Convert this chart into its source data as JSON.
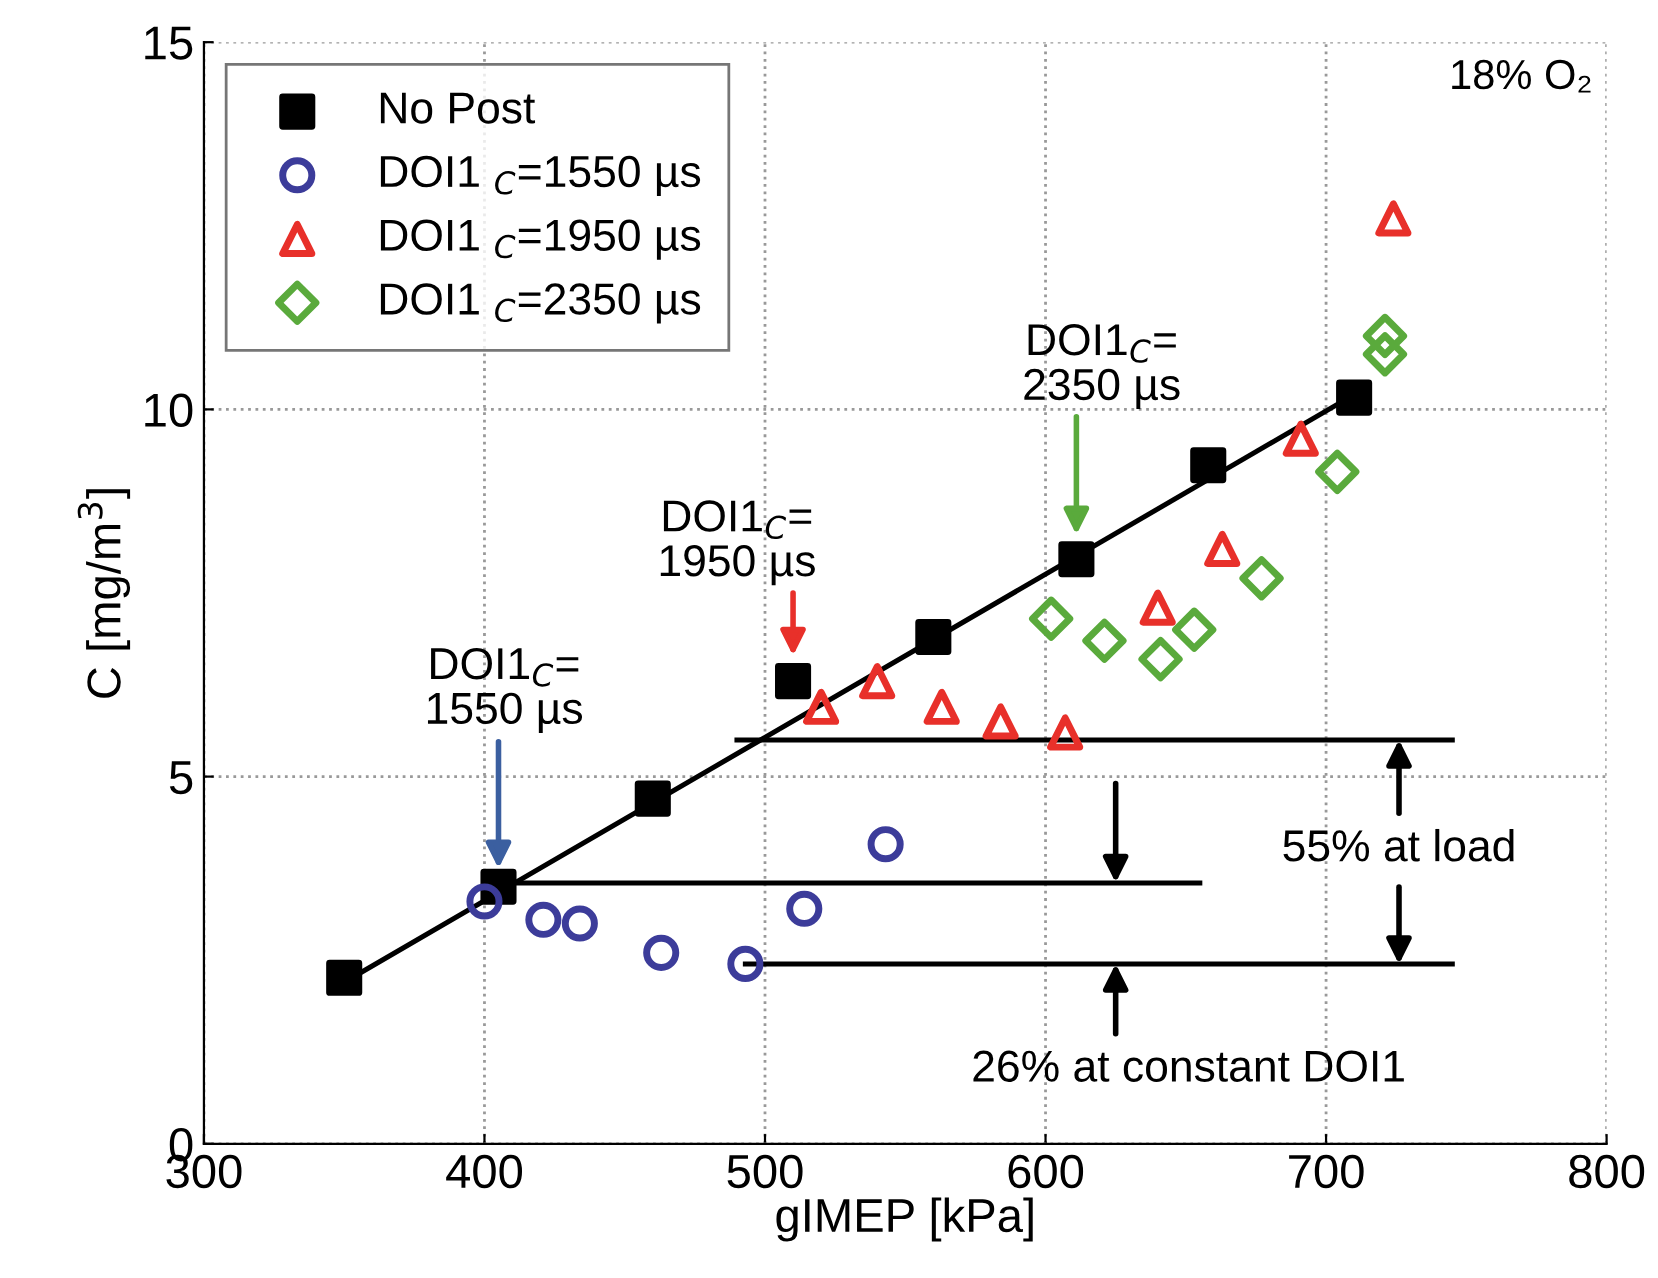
{
  "chart_data": {
    "type": "scatter",
    "xlabel": "gIMEP [kPa]",
    "ylabel": "C [mg/m$^{3}$]",
    "xlim": [
      300,
      800
    ],
    "xticks": [
      300,
      400,
      500,
      600,
      700,
      800
    ],
    "ylim": [
      0,
      15
    ],
    "yticks": [
      0,
      5,
      10,
      15
    ],
    "grid": true,
    "legend": "top left",
    "series": [
      {
        "name": "No Post",
        "color": "#000000",
        "marker": "square",
        "x": [
          350,
          405,
          460,
          510,
          560,
          611,
          658,
          710
        ],
        "values": [
          2.26,
          3.5,
          4.7,
          6.3,
          6.9,
          7.96,
          9.24,
          10.16
        ]
      },
      {
        "name": "DOI1 $_{C}$=1550 µs",
        "color": "#3c3c9a",
        "marker": "circle",
        "x": [
          400,
          421,
          434,
          463,
          493,
          514,
          543
        ],
        "values": [
          3.3,
          3.05,
          3.0,
          2.6,
          2.45,
          3.2,
          4.08
        ]
      },
      {
        "name": "DOI1 $_{C}$=1950 µs",
        "color": "#e8302a",
        "marker": "triangle",
        "x": [
          520,
          540,
          563,
          584,
          607,
          640,
          663,
          691,
          724
        ],
        "values": [
          5.95,
          6.3,
          5.95,
          5.75,
          5.6,
          7.3,
          8.1,
          9.6,
          12.6
        ]
      },
      {
        "name": "DOI1 $_{C}$=2350 µs",
        "color": "#5aaa3c",
        "marker": "diamond",
        "x": [
          602,
          621,
          641,
          653,
          677,
          704,
          721,
          721
        ],
        "values": [
          7.15,
          6.85,
          6.6,
          7.0,
          7.7,
          9.15,
          11.0,
          10.75
        ]
      },
      {
        "type": "line",
        "color": "#000000",
        "x": [
          350,
          710
        ],
        "values": [
          2.2,
          10.2
        ]
      },
      {
        "type": "line",
        "color": "#000000",
        "x": [
          490,
          745
        ],
        "values": [
          5.5,
          5.5
        ]
      },
      {
        "type": "line",
        "color": "#000000",
        "x": [
          405,
          655
        ],
        "values": [
          3.55,
          3.55
        ]
      },
      {
        "type": "line",
        "color": "#000000",
        "x": [
          493,
          745
        ],
        "values": [
          2.45,
          2.45
        ]
      }
    ],
    "annotations": [
      "18% O₂",
      "DOI1$_{C}$=\n1550 µs",
      "DOI1$_{C}$=\n1950 µs",
      "DOI1$_{C}$=\n2350 µs",
      {
        "text": "55% at load",
        "x": 726,
        "y": 5.5
      },
      {
        "text": "26% at constant DOI1",
        "x": 625,
        "y": 2.45
      }
    ]
  }
}
